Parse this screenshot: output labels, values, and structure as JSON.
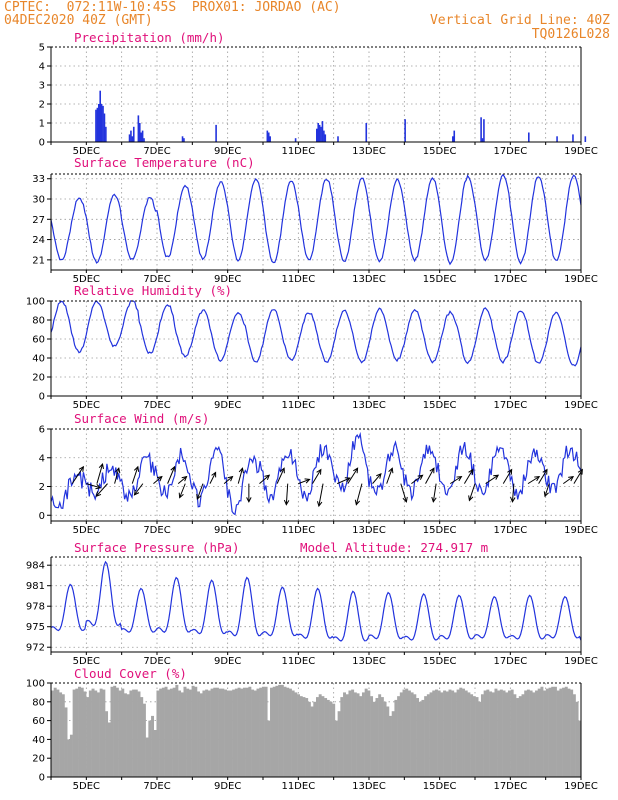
{
  "header": {
    "line1": "CPTEC:  072:11W-10:45S  PROX01: JORDAO (AC)",
    "line2_left": "04DEC2020 40Z (GMT)",
    "line2_right": "Vertical Grid Line: 40Z",
    "line3_right": "TQ0126L028"
  },
  "colors": {
    "header": "#e8862a",
    "title": "#e0107a",
    "series": "#2233dd",
    "cloud": "#a6a6a6"
  },
  "x_axis": {
    "labels": [
      "5DEC",
      "7DEC",
      "9DEC",
      "11DEC",
      "13DEC",
      "15DEC",
      "17DEC",
      "19DEC"
    ],
    "start": "04DEC2020 40Z",
    "days": 15
  },
  "chart_data": [
    {
      "id": "precip",
      "type": "bar",
      "title": "Precipitation (mm/h)",
      "ylim": [
        0,
        5
      ],
      "yticks": [
        0,
        1,
        2,
        3,
        4,
        5
      ],
      "grid": true,
      "events": [
        {
          "day": 1.25,
          "values": [
            1.7,
            1.8,
            2.0,
            2.7,
            2.0,
            1.9,
            1.5,
            0.8
          ]
        },
        {
          "day": 2.2,
          "values": [
            0.4,
            0.6,
            0.3,
            0.8
          ]
        },
        {
          "day": 2.45,
          "values": [
            1.4,
            1.0,
            0.5,
            0.6,
            0.2
          ]
        },
        {
          "day": 3.7,
          "values": [
            0.3,
            0.2
          ]
        },
        {
          "day": 4.65,
          "values": [
            0.9
          ]
        },
        {
          "day": 6.1,
          "values": [
            0.6,
            0.5,
            0.3
          ]
        },
        {
          "day": 6.9,
          "values": [
            0.2
          ]
        },
        {
          "day": 7.5,
          "values": [
            0.7,
            1.0,
            0.9,
            0.8,
            1.1,
            0.6,
            0.4
          ]
        },
        {
          "day": 8.1,
          "values": [
            0.3
          ]
        },
        {
          "day": 8.9,
          "values": [
            1.0
          ]
        },
        {
          "day": 10.0,
          "values": [
            1.2
          ]
        },
        {
          "day": 11.35,
          "values": [
            0.3,
            0.6
          ]
        },
        {
          "day": 12.15,
          "values": [
            1.3,
            0.2,
            1.2
          ]
        },
        {
          "day": 13.5,
          "values": [
            0.5
          ]
        },
        {
          "day": 14.3,
          "values": [
            0.3
          ]
        },
        {
          "day": 14.75,
          "values": [
            0.4
          ]
        },
        {
          "day": 15.1,
          "values": [
            0.3
          ]
        }
      ]
    },
    {
      "id": "temp",
      "type": "line",
      "title": "Surface Temperature (nC)",
      "ylim": [
        19.5,
        33.7
      ],
      "yticks": [
        21,
        24,
        27,
        30,
        33
      ],
      "grid": true,
      "maxima": [
        30.2,
        30.7,
        30.2,
        32.0,
        32.5,
        33.0,
        32.8,
        33.0,
        33.1,
        32.9,
        33.0,
        33.3,
        33.5,
        33.4,
        33.5,
        33.3
      ],
      "minima": [
        21.0,
        20.6,
        21.0,
        21.4,
        21.2,
        21.0,
        20.6,
        21.0,
        20.8,
        20.7,
        21.0,
        20.5,
        21.0,
        20.6,
        20.8,
        20.7
      ]
    },
    {
      "id": "rh",
      "type": "line",
      "title": "Relative Humidity (%)",
      "ylim": [
        0,
        100
      ],
      "yticks": [
        0,
        20,
        40,
        60,
        80,
        100
      ],
      "grid": true,
      "maxima": [
        100,
        100,
        100,
        96,
        90,
        88,
        92,
        88,
        90,
        92,
        90,
        88,
        92,
        90,
        88,
        85
      ],
      "minima": [
        48,
        46,
        52,
        45,
        42,
        38,
        36,
        38,
        36,
        35,
        38,
        36,
        35,
        36,
        34,
        32
      ]
    },
    {
      "id": "wind",
      "type": "line",
      "title": "Surface Wind (m/s)",
      "ylim": [
        -0.4,
        6
      ],
      "yticks": [
        0,
        2,
        4,
        6
      ],
      "grid": true,
      "speed_maxima": [
        2.8,
        3.2,
        4.0,
        4.2,
        4.4,
        3.8,
        4.5,
        4.6,
        5.4,
        4.6,
        4.5,
        4.6,
        4.4,
        4.4,
        4.6,
        4.3
      ],
      "speed_minima": [
        0.4,
        1.6,
        1.2,
        1.6,
        1.0,
        0.6,
        1.4,
        1.2,
        1.8,
        1.4,
        1.6,
        1.8,
        1.8,
        1.6,
        1.8,
        1.6
      ],
      "vectors": [
        {
          "day": 0.6,
          "u": 0.8,
          "v": 1.2
        },
        {
          "day": 1.0,
          "u": 1.0,
          "v": -0.3
        },
        {
          "day": 1.3,
          "u": 0.4,
          "v": 1.4
        },
        {
          "day": 1.6,
          "u": -0.8,
          "v": -0.9
        },
        {
          "day": 1.8,
          "u": 0.3,
          "v": 1.1
        },
        {
          "day": 2.3,
          "u": 0.4,
          "v": 1.2
        },
        {
          "day": 2.6,
          "u": -0.6,
          "v": -0.8
        },
        {
          "day": 2.9,
          "u": 0.6,
          "v": 0.5
        },
        {
          "day": 3.3,
          "u": 0.5,
          "v": 1.2
        },
        {
          "day": 3.6,
          "u": 0.6,
          "v": 0.5
        },
        {
          "day": 3.8,
          "u": -0.4,
          "v": -1.0
        },
        {
          "day": 4.3,
          "u": -0.4,
          "v": -1.1
        },
        {
          "day": 4.5,
          "u": 0.4,
          "v": 0.8
        },
        {
          "day": 4.9,
          "u": 0.6,
          "v": 0.5
        },
        {
          "day": 5.3,
          "u": 0.3,
          "v": 1.1
        },
        {
          "day": 5.6,
          "u": 0.0,
          "v": -1.3
        },
        {
          "day": 5.9,
          "u": 0.7,
          "v": 0.6
        },
        {
          "day": 6.4,
          "u": 0.5,
          "v": 1.1
        },
        {
          "day": 6.7,
          "u": -0.1,
          "v": -1.5
        },
        {
          "day": 7.0,
          "u": 0.8,
          "v": 0.3
        },
        {
          "day": 7.4,
          "u": 0.6,
          "v": 1.0
        },
        {
          "day": 7.7,
          "u": -0.3,
          "v": -1.6
        },
        {
          "day": 8.1,
          "u": 0.9,
          "v": 0.4
        },
        {
          "day": 8.4,
          "u": 0.7,
          "v": 1.1
        },
        {
          "day": 8.8,
          "u": -0.4,
          "v": -1.5
        },
        {
          "day": 9.1,
          "u": 0.6,
          "v": 0.7
        },
        {
          "day": 9.5,
          "u": 0.4,
          "v": 1.1
        },
        {
          "day": 9.9,
          "u": 0.4,
          "v": -1.3
        },
        {
          "day": 10.2,
          "u": 0.8,
          "v": 0.6
        },
        {
          "day": 10.6,
          "u": 0.6,
          "v": 1.1
        },
        {
          "day": 10.9,
          "u": -0.2,
          "v": -1.3
        },
        {
          "day": 11.3,
          "u": 0.8,
          "v": 0.5
        },
        {
          "day": 11.7,
          "u": 0.6,
          "v": 1.0
        },
        {
          "day": 12.0,
          "u": -0.4,
          "v": -1.2
        },
        {
          "day": 12.3,
          "u": 0.9,
          "v": 0.6
        },
        {
          "day": 12.8,
          "u": 0.6,
          "v": 1.0
        },
        {
          "day": 13.1,
          "u": -0.1,
          "v": -1.3
        },
        {
          "day": 13.5,
          "u": 0.8,
          "v": 0.5
        },
        {
          "day": 13.8,
          "u": 0.6,
          "v": 1.0
        },
        {
          "day": 14.1,
          "u": -0.3,
          "v": -0.9
        },
        {
          "day": 14.5,
          "u": 0.7,
          "v": 0.5
        },
        {
          "day": 14.8,
          "u": 0.6,
          "v": 1.0
        }
      ]
    },
    {
      "id": "press",
      "type": "line",
      "title": "Surface Pressure (hPa)",
      "annotation": "Model Altitude: 274.917 m",
      "ylim": [
        971.3,
        985.2
      ],
      "yticks": [
        972,
        975,
        978,
        981,
        984
      ],
      "grid": true,
      "maxima": [
        981.2,
        984.5,
        980.6,
        982.2,
        981.8,
        982.2,
        980.8,
        980.6,
        980.2,
        980.0,
        979.8,
        979.6,
        979.4,
        979.6,
        979.4,
        979.0
      ],
      "minima": [
        973.6,
        974.0,
        973.4,
        973.2,
        973.0,
        972.6,
        972.8,
        972.4,
        972.0,
        972.4,
        972.2,
        972.4,
        972.6,
        972.4,
        972.6,
        971.8
      ]
    },
    {
      "id": "cloud",
      "type": "bar",
      "title": "Cloud Cover (%)",
      "ylim": [
        0,
        100
      ],
      "yticks": [
        0,
        20,
        40,
        60,
        80,
        100
      ],
      "grid": true,
      "values": [
        92,
        95,
        93,
        90,
        88,
        74,
        40,
        45,
        93,
        94,
        96,
        95,
        91,
        85,
        92,
        94,
        92,
        90,
        94,
        93,
        70,
        58,
        96,
        97,
        95,
        92,
        94,
        89,
        88,
        92,
        93,
        93,
        91,
        85,
        78,
        42,
        60,
        65,
        50,
        92,
        94,
        95,
        96,
        93,
        94,
        95,
        98,
        92,
        90,
        96,
        94,
        93,
        97,
        96,
        91,
        89,
        92,
        93,
        92,
        94,
        95,
        95,
        94,
        94,
        93,
        92,
        92,
        93,
        94,
        95,
        94,
        95,
        95,
        96,
        93,
        92,
        94,
        95,
        96,
        96,
        60,
        95,
        96,
        97,
        98,
        98,
        96,
        95,
        94,
        92,
        90,
        88,
        86,
        85,
        84,
        80,
        75,
        80,
        85,
        88,
        86,
        84,
        82,
        80,
        78,
        60,
        70,
        85,
        90,
        88,
        92,
        93,
        90,
        89,
        86,
        90,
        94,
        92,
        86,
        80,
        84,
        88,
        85,
        80,
        75,
        65,
        70,
        82,
        86,
        90,
        93,
        94,
        92,
        90,
        88,
        84,
        80,
        82,
        86,
        88,
        90,
        92,
        93,
        92,
        90,
        92,
        91,
        93,
        92,
        90,
        93,
        95,
        94,
        92,
        90,
        88,
        86,
        85,
        80,
        88,
        92,
        93,
        91,
        90,
        94,
        92,
        93,
        92,
        90,
        92,
        93,
        88,
        84,
        86,
        88,
        92,
        93,
        92,
        90,
        92,
        94,
        96,
        92,
        94,
        95,
        96,
        96,
        92,
        94,
        95,
        96,
        94,
        93,
        88,
        80,
        60
      ]
    }
  ]
}
